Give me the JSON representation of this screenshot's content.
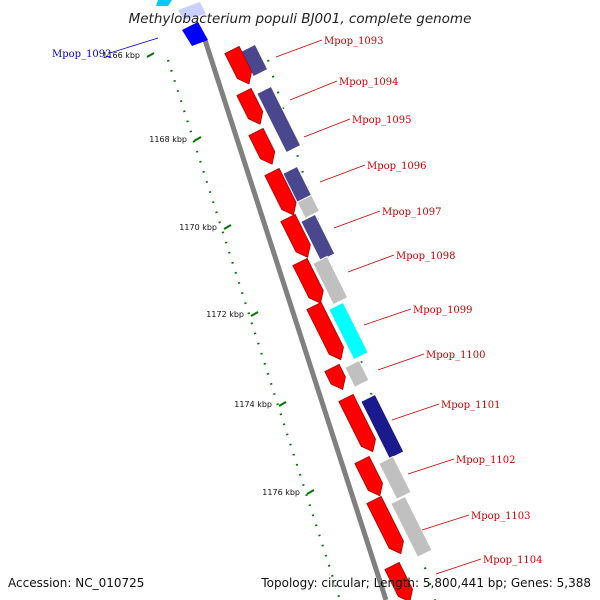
{
  "title": "Methylobacterium populi BJ001, complete genome",
  "accession": "Accession: NC_010725",
  "topology": "Topology: circular; Length: 5,800,441 bp; Genes: 5,388",
  "scale": {
    "ticks": [
      {
        "label": "1166 kbp",
        "kbp": 1166
      },
      {
        "label": "1168 kbp",
        "kbp": 1168
      },
      {
        "label": "1170 kbp",
        "kbp": 1170
      },
      {
        "label": "1172 kbp",
        "kbp": 1172
      },
      {
        "label": "1174 kbp",
        "kbp": 1174
      },
      {
        "label": "1176 kbp",
        "kbp": 1176
      }
    ]
  },
  "genes": [
    {
      "name": "Mpop_1092",
      "strand": "-",
      "color": "#0000cc"
    },
    {
      "name": "Mpop_1093",
      "strand": "+",
      "color": "#cc0000"
    },
    {
      "name": "Mpop_1094",
      "strand": "+",
      "color": "#cc0000"
    },
    {
      "name": "Mpop_1095",
      "strand": "+",
      "color": "#cc0000"
    },
    {
      "name": "Mpop_1096",
      "strand": "+",
      "color": "#cc0000"
    },
    {
      "name": "Mpop_1097",
      "strand": "+",
      "color": "#cc0000"
    },
    {
      "name": "Mpop_1098",
      "strand": "+",
      "color": "#cc0000"
    },
    {
      "name": "Mpop_1099",
      "strand": "+",
      "color": "#cc0000"
    },
    {
      "name": "Mpop_1100",
      "strand": "+",
      "color": "#cc0000"
    },
    {
      "name": "Mpop_1101",
      "strand": "+",
      "color": "#cc0000"
    },
    {
      "name": "Mpop_1102",
      "strand": "+",
      "color": "#cc0000"
    },
    {
      "name": "Mpop_1103",
      "strand": "+",
      "color": "#cc0000"
    },
    {
      "name": "Mpop_1104",
      "strand": "+",
      "color": "#cc0000"
    }
  ],
  "colors": {
    "forward_gene": "#ff0000",
    "reverse_gene": "#0000ff",
    "backbone": "#808080",
    "tick": "#007700",
    "cog_slate": "#4b478f",
    "cog_gray": "#c0c0c0",
    "cog_cyan": "#00ffff",
    "cog_navy": "#1a1a8c"
  }
}
